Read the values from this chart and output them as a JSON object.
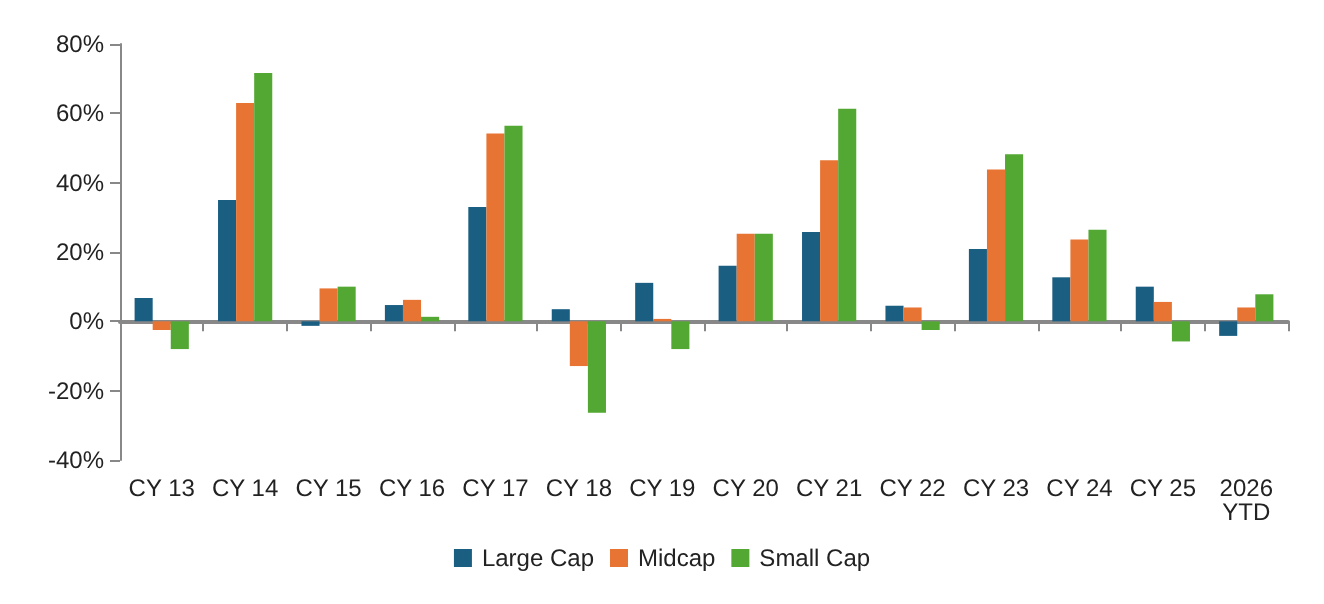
{
  "chart_data": {
    "type": "bar",
    "categories": [
      "CY 13",
      "CY 14",
      "CY 15",
      "CY 16",
      "CY 17",
      "CY 18",
      "CY 19",
      "CY 20",
      "CY 21",
      "CY 22",
      "CY 23",
      "CY 24",
      "CY 25",
      "2026\nYTD"
    ],
    "series": [
      {
        "name": "Large Cap",
        "color": "#1a5e82",
        "values": [
          6.7,
          35,
          -1.3,
          4.7,
          33,
          3.5,
          11.1,
          16,
          25.8,
          4.5,
          20.9,
          12.7,
          10,
          -4.2
        ]
      },
      {
        "name": "Midcap",
        "color": "#e87434",
        "values": [
          -2.5,
          63,
          9.5,
          6.2,
          54.2,
          -12.9,
          0.7,
          25.3,
          46.5,
          4,
          43.8,
          23.6,
          5.6,
          4
        ]
      },
      {
        "name": "Small Cap",
        "color": "#52a832",
        "values": [
          -8,
          71.6,
          10,
          1.3,
          56.4,
          -26.4,
          -8,
          25.3,
          61.3,
          -2.5,
          48.2,
          26.4,
          -5.8,
          7.8
        ]
      }
    ],
    "ylim": [
      -40,
      80
    ],
    "yticks": [
      {
        "value": -40,
        "label": "-40%"
      },
      {
        "value": -20,
        "label": "-20%"
      },
      {
        "value": 0,
        "label": "0%"
      },
      {
        "value": 20,
        "label": "20%"
      },
      {
        "value": 40,
        "label": "40%"
      },
      {
        "value": 60,
        "label": "60%"
      },
      {
        "value": 80,
        "label": "80%"
      }
    ],
    "legend": "bottom"
  }
}
